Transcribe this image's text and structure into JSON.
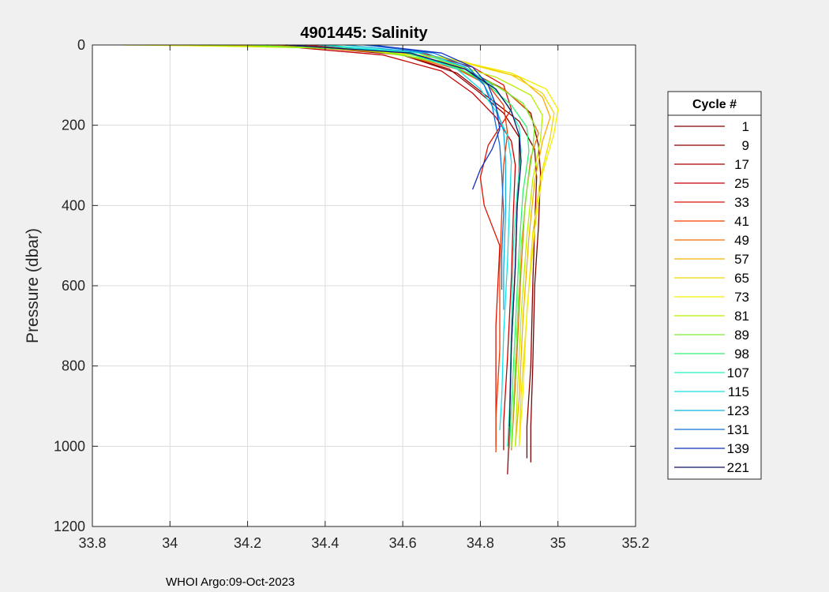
{
  "chart_data": {
    "type": "line",
    "title": "4901445:  Salinity",
    "xlabel": "",
    "ylabel": "Pressure (dbar)",
    "xlim": [
      33.8,
      35.2
    ],
    "ylim": [
      0,
      1200
    ],
    "y_reversed": true,
    "grid": true,
    "x_ticks": [
      33.8,
      34,
      34.2,
      34.4,
      34.6,
      34.8,
      35,
      35.2
    ],
    "x_tick_labels": [
      "33.8",
      "34",
      "34.2",
      "34.4",
      "34.6",
      "34.8",
      "35",
      "35.2"
    ],
    "y_ticks": [
      0,
      200,
      400,
      600,
      800,
      1000,
      1200
    ],
    "y_tick_labels": [
      "0",
      "200",
      "400",
      "600",
      "800",
      "1000",
      "1200"
    ],
    "legend": {
      "title": "Cycle #",
      "placement": "right",
      "entries": [
        {
          "label": "1",
          "color": "#800000"
        },
        {
          "label": "9",
          "color": "#8b0000"
        },
        {
          "label": "17",
          "color": "#a30000"
        },
        {
          "label": "25",
          "color": "#c80000"
        },
        {
          "label": "33",
          "color": "#e01000"
        },
        {
          "label": "41",
          "color": "#f03c00"
        },
        {
          "label": "49",
          "color": "#f56e00"
        },
        {
          "label": "57",
          "color": "#f8b000"
        },
        {
          "label": "65",
          "color": "#f5d800"
        },
        {
          "label": "73",
          "color": "#f0f000"
        },
        {
          "label": "81",
          "color": "#b8f000"
        },
        {
          "label": "89",
          "color": "#78f030"
        },
        {
          "label": "98",
          "color": "#30f070"
        },
        {
          "label": "107",
          "color": "#20f0c0"
        },
        {
          "label": "115",
          "color": "#10e0e8"
        },
        {
          "label": "123",
          "color": "#10b0e0"
        },
        {
          "label": "131",
          "color": "#1070d8"
        },
        {
          "label": "139",
          "color": "#1030c0"
        },
        {
          "label": "221",
          "color": "#10106a"
        }
      ]
    },
    "series": [
      {
        "name": "1",
        "color": "#800000",
        "x": [
          34.28,
          34.62,
          34.76,
          34.86,
          34.93,
          34.95,
          34.955,
          34.95,
          34.94,
          34.935,
          34.93,
          34.93
        ],
        "y": [
          0,
          20,
          60,
          110,
          170,
          250,
          320,
          450,
          600,
          800,
          950,
          1040
        ]
      },
      {
        "name": "9",
        "color": "#8b0000",
        "x": [
          34.3,
          34.6,
          34.74,
          34.82,
          34.9,
          34.94,
          34.945,
          34.94,
          34.935,
          34.93,
          34.92,
          34.92
        ],
        "y": [
          0,
          25,
          70,
          130,
          190,
          260,
          330,
          450,
          600,
          800,
          950,
          1030
        ]
      },
      {
        "name": "17",
        "color": "#a30000",
        "x": [
          34.32,
          34.58,
          34.72,
          34.8,
          34.86,
          34.9,
          34.9,
          34.895,
          34.89,
          34.88,
          34.875,
          34.87
        ],
        "y": [
          0,
          20,
          60,
          120,
          170,
          230,
          300,
          400,
          550,
          750,
          950,
          1070
        ]
      },
      {
        "name": "25",
        "color": "#c80000",
        "x": [
          34.25,
          34.55,
          34.7,
          34.78,
          34.84,
          34.88,
          34.89,
          34.885,
          34.88,
          34.87,
          34.86,
          34.86
        ],
        "y": [
          0,
          25,
          65,
          120,
          180,
          240,
          300,
          420,
          580,
          780,
          940,
          1010
        ]
      },
      {
        "name": "33",
        "color": "#e01000",
        "x": [
          34.35,
          34.65,
          34.78,
          34.86,
          34.88,
          34.82,
          34.8,
          34.81,
          34.85,
          34.84,
          34.84,
          34.84
        ],
        "y": [
          0,
          20,
          55,
          100,
          160,
          250,
          330,
          400,
          500,
          700,
          900,
          1000
        ]
      },
      {
        "name": "41",
        "color": "#f03c00",
        "x": [
          34.2,
          34.55,
          34.72,
          34.82,
          34.86,
          34.87,
          34.86,
          34.855,
          34.85,
          34.85,
          34.84,
          34.84
        ],
        "y": [
          0,
          15,
          50,
          100,
          150,
          220,
          300,
          420,
          560,
          760,
          930,
          1015
        ]
      },
      {
        "name": "49",
        "color": "#f56e00",
        "x": [
          34.25,
          34.58,
          34.74,
          34.86,
          34.92,
          34.95,
          34.93,
          34.915,
          34.905,
          34.895,
          34.885,
          34.88
        ],
        "y": [
          0,
          20,
          60,
          110,
          160,
          220,
          280,
          400,
          560,
          760,
          930,
          1010
        ]
      },
      {
        "name": "57",
        "color": "#f8b000",
        "x": [
          34.1,
          34.5,
          34.75,
          34.9,
          34.96,
          34.98,
          34.96,
          34.94,
          34.925,
          34.91,
          34.9,
          34.89
        ],
        "y": [
          0,
          10,
          40,
          80,
          130,
          180,
          240,
          340,
          480,
          680,
          880,
          1000
        ]
      },
      {
        "name": "65",
        "color": "#f5d800",
        "x": [
          33.95,
          34.45,
          34.72,
          34.88,
          34.96,
          34.99,
          34.98,
          34.955,
          34.935,
          34.92,
          34.905,
          34.9
        ],
        "y": [
          0,
          8,
          35,
          75,
          120,
          170,
          230,
          330,
          470,
          670,
          870,
          1000
        ]
      },
      {
        "name": "73",
        "color": "#f0f000",
        "x": [
          33.88,
          34.4,
          34.7,
          34.88,
          34.97,
          35.0,
          34.99,
          34.96,
          34.94,
          34.92,
          34.91,
          34.9
        ],
        "y": [
          0,
          6,
          30,
          70,
          110,
          160,
          220,
          320,
          460,
          660,
          860,
          1000
        ]
      },
      {
        "name": "81",
        "color": "#b8f000",
        "x": [
          34.05,
          34.48,
          34.7,
          34.84,
          34.93,
          34.96,
          34.955,
          34.935,
          34.92,
          34.905,
          34.895,
          34.89
        ],
        "y": [
          0,
          10,
          40,
          80,
          125,
          175,
          235,
          335,
          475,
          675,
          875,
          1000
        ]
      },
      {
        "name": "89",
        "color": "#78f030",
        "x": [
          34.2,
          34.55,
          34.72,
          34.83,
          34.91,
          34.94,
          34.935,
          34.92,
          34.905,
          34.895,
          34.885,
          34.88
        ],
        "y": [
          0,
          15,
          50,
          95,
          145,
          200,
          260,
          360,
          500,
          700,
          900,
          1005
        ]
      },
      {
        "name": "98",
        "color": "#30f070",
        "x": [
          34.3,
          34.6,
          34.74,
          34.82,
          34.88,
          34.92,
          34.925,
          34.91,
          34.9,
          34.89,
          34.88,
          34.875
        ],
        "y": [
          0,
          18,
          55,
          100,
          150,
          205,
          265,
          365,
          505,
          705,
          905,
          1005
        ]
      },
      {
        "name": "107",
        "color": "#20f0c0",
        "x": [
          34.4,
          34.64,
          34.76,
          34.83,
          34.87,
          34.9,
          34.905,
          34.895,
          34.885,
          34.88,
          34.875,
          34.87
        ],
        "y": [
          0,
          20,
          55,
          100,
          150,
          205,
          265,
          365,
          505,
          705,
          905,
          1000
        ]
      },
      {
        "name": "115",
        "color": "#10e0e8",
        "x": [
          34.38,
          34.62,
          34.74,
          34.8,
          34.84,
          34.87,
          34.88,
          34.875,
          34.87,
          34.86,
          34.855,
          34.85
        ],
        "y": [
          0,
          20,
          60,
          110,
          165,
          225,
          290,
          400,
          540,
          720,
          880,
          960
        ]
      },
      {
        "name": "123",
        "color": "#10b0e0",
        "x": [
          34.45,
          34.66,
          34.76,
          34.81,
          34.84,
          34.86,
          34.865,
          34.865,
          34.86,
          34.86
        ],
        "y": [
          0,
          20,
          55,
          100,
          155,
          215,
          290,
          410,
          560,
          660
        ]
      },
      {
        "name": "131",
        "color": "#1070d8",
        "x": [
          34.5,
          34.68,
          34.77,
          34.81,
          34.83,
          34.84,
          34.85,
          34.855,
          34.86,
          34.855,
          34.855
        ],
        "y": [
          0,
          20,
          55,
          100,
          150,
          200,
          250,
          320,
          420,
          520,
          610
        ]
      },
      {
        "name": "139",
        "color": "#1030c0",
        "x": [
          34.52,
          34.7,
          34.78,
          34.82,
          34.84,
          34.85,
          34.83,
          34.8,
          34.78
        ],
        "y": [
          0,
          20,
          55,
          100,
          150,
          210,
          260,
          310,
          360
        ]
      },
      {
        "name": "221",
        "color": "#10106a",
        "x": [
          34.3,
          34.62,
          34.76,
          34.84,
          34.88,
          34.9,
          34.905,
          34.895,
          34.89,
          34.88,
          34.875
        ],
        "y": [
          0,
          20,
          60,
          110,
          165,
          225,
          290,
          400,
          550,
          750,
          950
        ]
      }
    ]
  },
  "footer": {
    "text": "WHOI Argo:09-Oct-2023"
  }
}
